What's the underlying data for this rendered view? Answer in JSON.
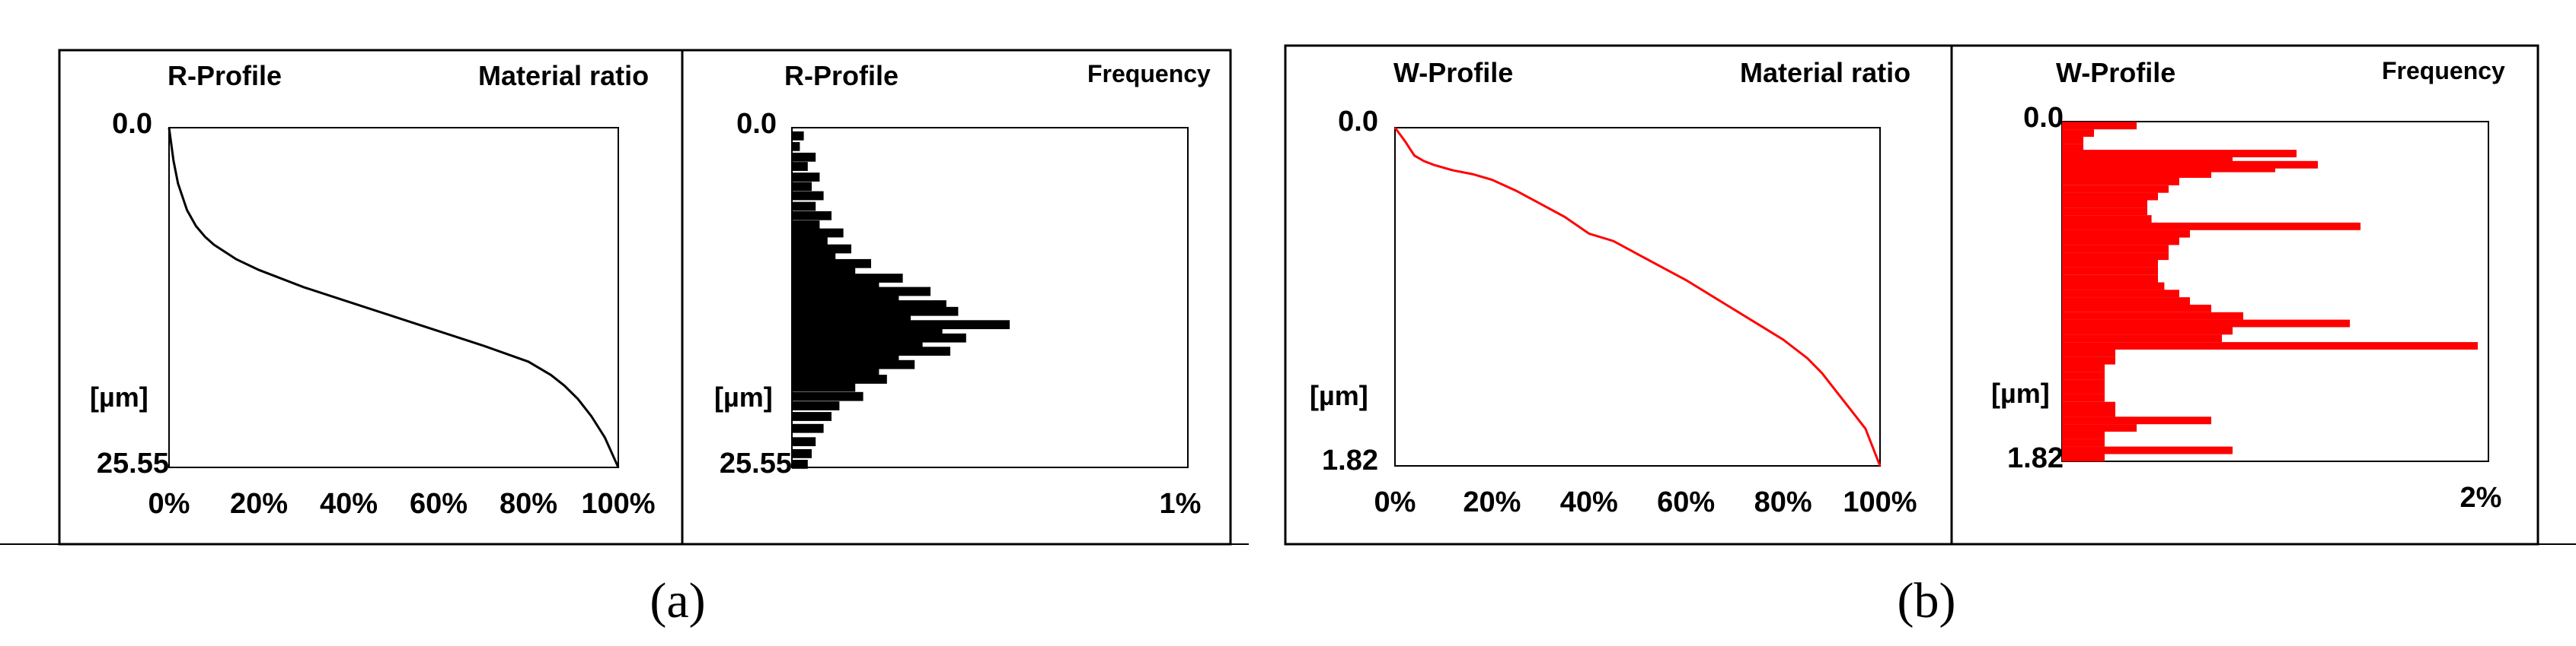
{
  "colors": {
    "r_profile": "#000000",
    "w_profile": "#ff0000",
    "frame": "#000000"
  },
  "captions": [
    "(a)",
    "(b)"
  ],
  "chart_data": [
    {
      "id": "a-material-ratio",
      "type": "line",
      "title": "R-Profile",
      "corner_label": "Material ratio",
      "ylabel": "[µm]",
      "y_top_label": "0.0",
      "y_bottom_label": "25.55",
      "xlim": [
        0,
        100
      ],
      "ylim": [
        0,
        25.55
      ],
      "x_tick_labels": [
        "0%",
        "20%",
        "40%",
        "60%",
        "80%",
        "100%"
      ],
      "x": [
        0,
        1,
        2,
        4,
        6,
        8,
        10,
        15,
        20,
        30,
        40,
        50,
        60,
        70,
        80,
        85,
        88,
        91,
        94,
        97,
        100
      ],
      "y": [
        0,
        2.5,
        4.2,
        6.2,
        7.4,
        8.2,
        8.8,
        9.9,
        10.7,
        12.0,
        13.1,
        14.2,
        15.3,
        16.4,
        17.6,
        18.6,
        19.4,
        20.4,
        21.7,
        23.3,
        25.55
      ]
    },
    {
      "id": "a-frequency",
      "type": "bar",
      "orientation": "horizontal",
      "title": "R-Profile",
      "corner_label": "Frequency",
      "ylabel": "[µm]",
      "y_top_label": "0.0",
      "y_bottom_label": "25.55",
      "x_tick_labels": [
        "1%"
      ],
      "xlim": [
        0,
        1
      ],
      "ylim": [
        0,
        25.55
      ],
      "y_centers": [
        0.6,
        1.4,
        2.2,
        2.9,
        3.7,
        4.4,
        5.1,
        5.9,
        6.6,
        7.3,
        7.9,
        8.5,
        9.1,
        9.7,
        10.2,
        10.8,
        11.3,
        11.8,
        12.3,
        12.8,
        13.3,
        13.8,
        14.3,
        14.8,
        15.3,
        15.8,
        16.3,
        16.8,
        17.3,
        17.8,
        18.4,
        18.9,
        19.5,
        20.2,
        20.9,
        21.7,
        22.6,
        23.6,
        24.5,
        25.3
      ],
      "values": [
        0.03,
        0.02,
        0.06,
        0.04,
        0.07,
        0.05,
        0.08,
        0.06,
        0.1,
        0.07,
        0.13,
        0.09,
        0.15,
        0.11,
        0.2,
        0.16,
        0.28,
        0.22,
        0.35,
        0.27,
        0.39,
        0.42,
        0.3,
        0.55,
        0.38,
        0.44,
        0.33,
        0.4,
        0.27,
        0.31,
        0.22,
        0.24,
        0.16,
        0.18,
        0.12,
        0.1,
        0.08,
        0.06,
        0.05,
        0.04
      ]
    },
    {
      "id": "b-material-ratio",
      "type": "line",
      "title": "W-Profile",
      "corner_label": "Material ratio",
      "ylabel": "[µm]",
      "y_top_label": "0.0",
      "y_bottom_label": "1.82",
      "xlim": [
        0,
        100
      ],
      "ylim": [
        0,
        1.82
      ],
      "x_tick_labels": [
        "0%",
        "20%",
        "40%",
        "60%",
        "80%",
        "100%"
      ],
      "x": [
        0,
        2,
        4,
        6,
        8,
        12,
        16,
        20,
        25,
        30,
        35,
        40,
        45,
        50,
        55,
        60,
        65,
        70,
        75,
        80,
        85,
        88,
        91,
        94,
        97,
        100
      ],
      "y": [
        0,
        0.07,
        0.15,
        0.18,
        0.2,
        0.23,
        0.25,
        0.28,
        0.34,
        0.41,
        0.48,
        0.57,
        0.61,
        0.68,
        0.75,
        0.82,
        0.9,
        0.98,
        1.06,
        1.14,
        1.24,
        1.32,
        1.42,
        1.52,
        1.62,
        1.82
      ]
    },
    {
      "id": "b-frequency",
      "type": "bar",
      "orientation": "horizontal",
      "title": "W-Profile",
      "corner_label": "Frequency",
      "ylabel": "[µm]",
      "y_top_label": "0.0",
      "y_bottom_label": "1.82",
      "x_tick_labels": [
        "2%"
      ],
      "xlim": [
        0,
        2
      ],
      "ylim": [
        0,
        1.82
      ],
      "y_centers": [
        0.02,
        0.06,
        0.1,
        0.14,
        0.17,
        0.19,
        0.21,
        0.23,
        0.25,
        0.28,
        0.32,
        0.36,
        0.4,
        0.44,
        0.48,
        0.52,
        0.56,
        0.6,
        0.64,
        0.68,
        0.72,
        0.76,
        0.8,
        0.84,
        0.88,
        0.92,
        0.96,
        1.0,
        1.04,
        1.08,
        1.12,
        1.16,
        1.2,
        1.24,
        1.28,
        1.32,
        1.36,
        1.4,
        1.44,
        1.48,
        1.52,
        1.56,
        1.6,
        1.64,
        1.68,
        1.72,
        1.76,
        1.8
      ],
      "values": [
        0.35,
        0.15,
        0.1,
        0.1,
        1.1,
        0.55,
        0.8,
        1.2,
        1.0,
        0.7,
        0.55,
        0.5,
        0.45,
        0.4,
        0.4,
        0.42,
        1.4,
        0.6,
        0.55,
        0.5,
        0.5,
        0.45,
        0.45,
        0.45,
        0.48,
        0.55,
        0.6,
        0.7,
        0.85,
        1.35,
        0.8,
        0.75,
        1.95,
        0.25,
        0.25,
        0.2,
        0.2,
        0.2,
        0.2,
        0.2,
        0.25,
        0.25,
        0.7,
        0.35,
        0.2,
        0.2,
        0.8,
        0.2
      ]
    }
  ]
}
